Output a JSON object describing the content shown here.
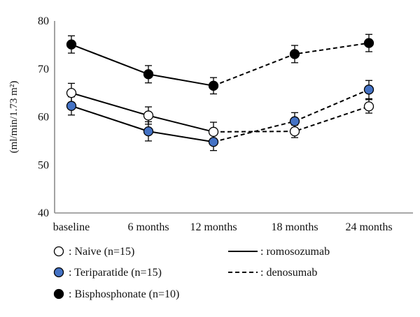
{
  "chart_data": {
    "type": "line",
    "categories": [
      "baseline",
      "6 months",
      "12 months",
      "18 months",
      "24 months"
    ],
    "ylabel": "(ml/min/1.73 m²)",
    "ylim": [
      40,
      80
    ],
    "yticks": [
      "40",
      "50",
      "60",
      "70",
      "80"
    ],
    "grid": false,
    "series": [
      {
        "name": ": Naive (n=15)",
        "marker": "open-circle",
        "marker_fill": "#ffffff",
        "values": [
          65.0,
          60.3,
          56.9,
          57.0,
          62.2
        ],
        "error": [
          2.0,
          1.8,
          2.0,
          1.3,
          1.4
        ]
      },
      {
        "name": ": Teriparatide (n=15)",
        "marker": "filled-circle",
        "marker_fill": "#4472c4",
        "values": [
          62.3,
          57.0,
          54.8,
          59.1,
          65.7
        ],
        "error": [
          1.9,
          2.0,
          1.8,
          1.8,
          1.9
        ]
      },
      {
        "name": ": Bisphosphonate (n=10)",
        "marker": "filled-circle",
        "marker_fill": "#000000",
        "values": [
          75.1,
          68.9,
          66.5,
          73.1,
          75.4
        ],
        "error": [
          1.8,
          1.8,
          1.7,
          1.8,
          1.8
        ]
      }
    ],
    "treatment_segments": [
      {
        "label": ": romosozumab",
        "style": "solid",
        "from": 0,
        "to": 2
      },
      {
        "label": ": denosumab",
        "style": "dashed",
        "from": 2,
        "to": 4
      }
    ],
    "legend_position": "bottom"
  }
}
